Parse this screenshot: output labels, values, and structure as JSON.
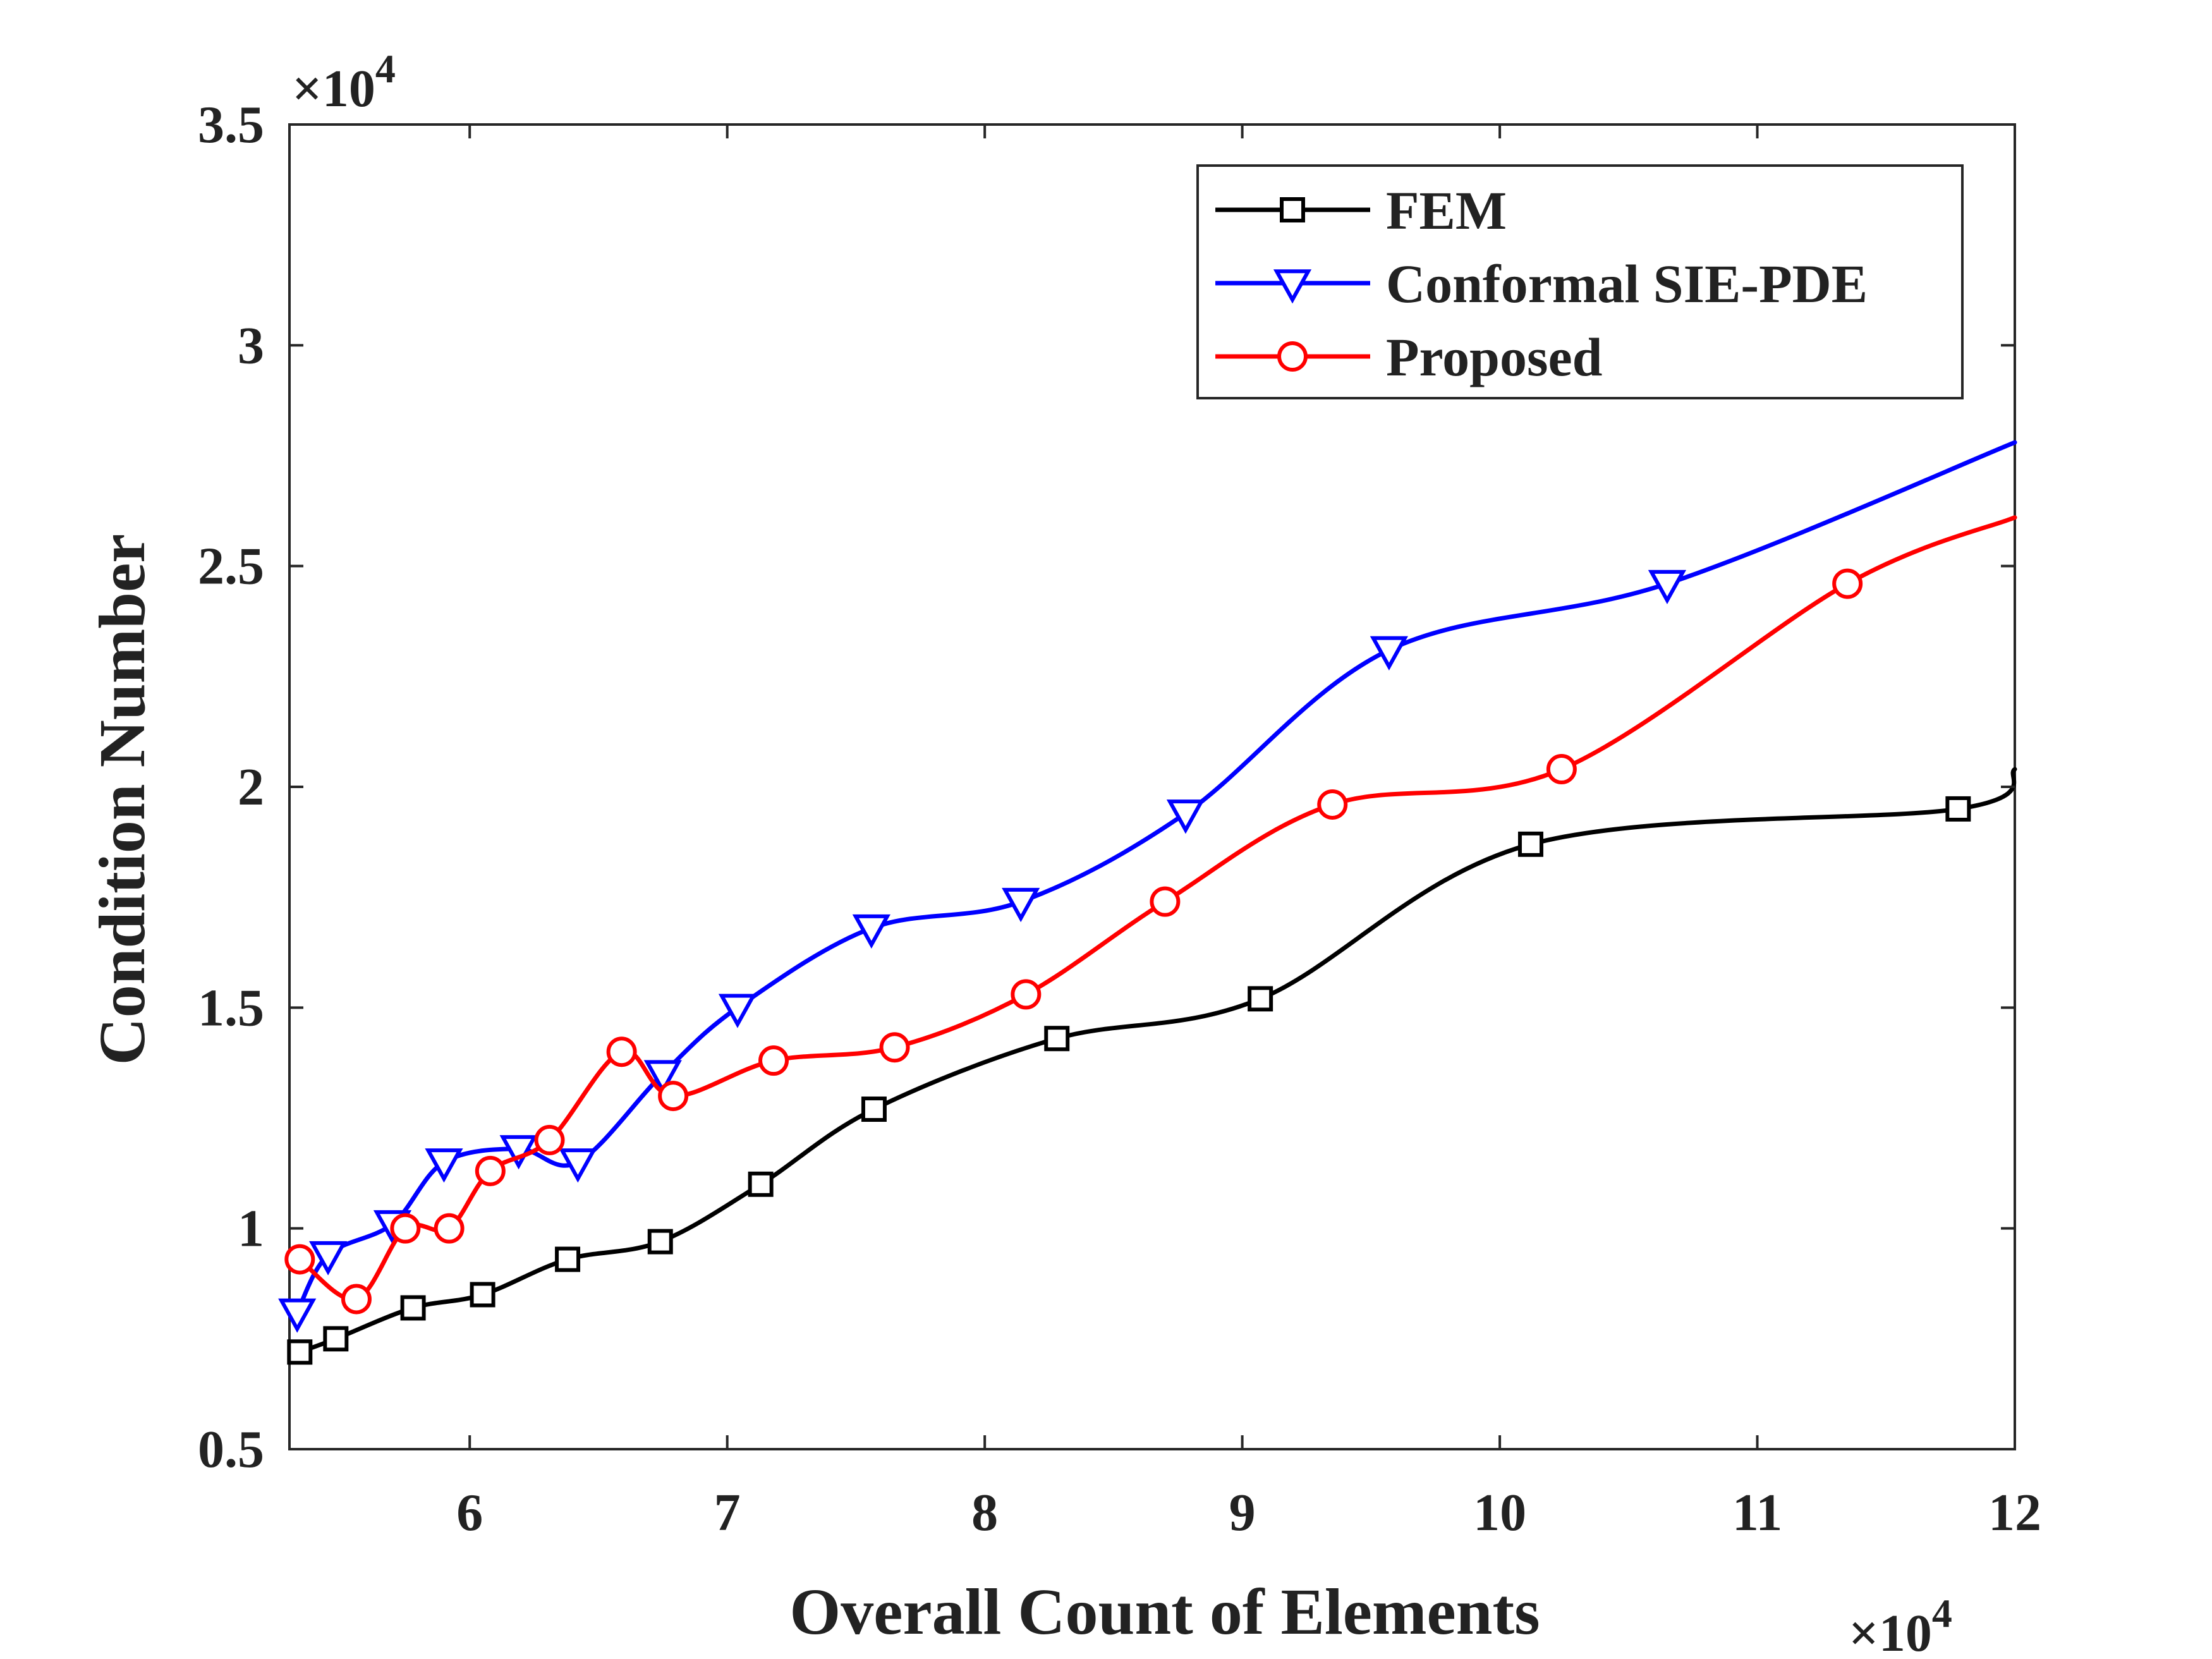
{
  "chart_data": {
    "type": "line",
    "title": "",
    "xlabel": "Overall Count of Elements",
    "ylabel": "Condition Number",
    "x_multiplier_label": "×10^4",
    "y_multiplier_label": "×10^4",
    "xlim": [
      5.3,
      12
    ],
    "ylim": [
      0.5,
      3.5
    ],
    "x_ticks": [
      6,
      7,
      8,
      9,
      10,
      11,
      12
    ],
    "x_tick_labels": [
      "6",
      "7",
      "8",
      "9",
      "10",
      "11",
      "12"
    ],
    "y_ticks": [
      0.5,
      1,
      1.5,
      2,
      2.5,
      3,
      3.5
    ],
    "y_tick_labels": [
      "0.5",
      "1",
      "1.5",
      "2",
      "2.5",
      "3",
      "3.5"
    ],
    "grid": false,
    "legend_position": "top-right",
    "series": [
      {
        "name": "FEM",
        "color": "#000000",
        "marker": "square",
        "x": [
          5.34,
          5.48,
          5.78,
          6.05,
          6.38,
          6.74,
          7.13,
          7.57,
          8.28,
          9.07,
          10.12,
          11.78
        ],
        "y": [
          0.72,
          0.75,
          0.82,
          0.85,
          0.93,
          0.97,
          1.1,
          1.27,
          1.43,
          1.52,
          1.87,
          1.95
        ],
        "end": [
          12,
          2.04
        ]
      },
      {
        "name": "Conformal SIE-PDE",
        "color": "#0000ff",
        "marker": "triangle-down",
        "x": [
          5.33,
          5.45,
          5.7,
          5.9,
          6.19,
          6.42,
          6.75,
          7.04,
          7.56,
          8.14,
          8.78,
          9.57,
          10.65
        ],
        "y": [
          0.81,
          0.94,
          1.01,
          1.15,
          1.18,
          1.15,
          1.35,
          1.5,
          1.68,
          1.74,
          1.94,
          2.31,
          2.46
        ],
        "end": [
          12,
          2.78
        ]
      },
      {
        "name": "Proposed",
        "color": "#ff0000",
        "marker": "circle",
        "x": [
          5.34,
          5.56,
          5.75,
          5.92,
          6.08,
          6.31,
          6.59,
          6.79,
          7.18,
          7.65,
          8.16,
          8.7,
          9.35,
          10.24,
          11.35
        ],
        "y": [
          0.93,
          0.84,
          1.0,
          1.0,
          1.13,
          1.2,
          1.4,
          1.3,
          1.38,
          1.41,
          1.53,
          1.74,
          1.96,
          2.04,
          2.46
        ],
        "end": [
          12,
          2.61
        ]
      }
    ]
  }
}
